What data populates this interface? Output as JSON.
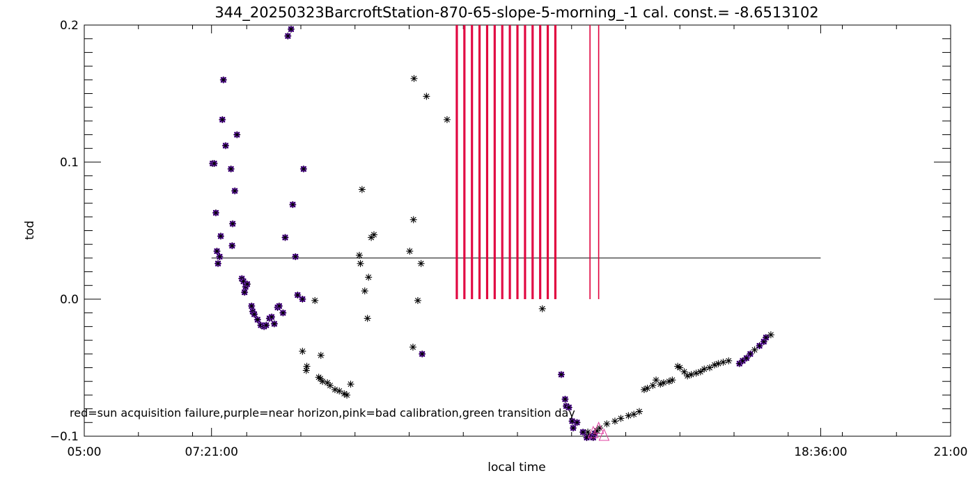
{
  "chart_data": {
    "type": "scatter",
    "title": "344_20250323BarcroftStation-870-65-slope-5-morning_-1 cal. const.= -8.6513102",
    "xlabel": "local time",
    "ylabel": "tod",
    "xlim_hours": [
      5.0,
      21.0
    ],
    "ylim": [
      -0.1,
      0.2
    ],
    "x_ticks": [
      {
        "value": 5.0,
        "label": "05:00"
      },
      {
        "value": 7.35,
        "label": "07:21:00"
      },
      {
        "value": 18.6,
        "label": "18:36:00"
      },
      {
        "value": 21.0,
        "label": "21:00"
      }
    ],
    "y_ticks": [
      {
        "value": -0.1,
        "label": "−0.1"
      },
      {
        "value": 0.0,
        "label": "0.0"
      },
      {
        "value": 0.1,
        "label": "0.1"
      },
      {
        "value": 0.2,
        "label": "0.2"
      }
    ],
    "annotation": "red=sun acquisition failure,purple=near horizon,pink=bad calibration,green transition day",
    "reference_line": {
      "y": 0.03,
      "x_start": 7.35,
      "x_end": 18.6,
      "color": "#000000"
    },
    "colors": {
      "black": "#000000",
      "purple": "#8a2be2",
      "red": "#e0003c",
      "pink": "#e040a0"
    },
    "near_horizon_points": [
      [
        7.37,
        0.099
      ],
      [
        7.4,
        0.099
      ],
      [
        7.43,
        0.063
      ],
      [
        7.45,
        0.035
      ],
      [
        7.47,
        0.026
      ],
      [
        7.5,
        0.031
      ],
      [
        7.52,
        0.046
      ],
      [
        7.55,
        0.131
      ],
      [
        7.57,
        0.16
      ],
      [
        7.61,
        0.112
      ],
      [
        7.71,
        0.095
      ],
      [
        7.74,
        0.055
      ],
      [
        7.73,
        0.039
      ],
      [
        7.78,
        0.079
      ],
      [
        7.82,
        0.12
      ],
      [
        7.91,
        0.015
      ],
      [
        7.94,
        0.013
      ],
      [
        7.96,
        0.005
      ],
      [
        7.98,
        0.009
      ],
      [
        8.01,
        0.011
      ],
      [
        8.09,
        -0.005
      ],
      [
        8.11,
        -0.009
      ],
      [
        8.14,
        -0.011
      ],
      [
        8.2,
        -0.015
      ],
      [
        8.26,
        -0.019
      ],
      [
        8.32,
        -0.02
      ],
      [
        8.36,
        -0.019
      ],
      [
        8.42,
        -0.014
      ],
      [
        8.46,
        -0.013
      ],
      [
        8.51,
        -0.018
      ],
      [
        8.57,
        -0.006
      ],
      [
        8.6,
        -0.005
      ],
      [
        8.67,
        -0.01
      ],
      [
        8.71,
        0.045
      ],
      [
        8.76,
        0.192
      ],
      [
        8.82,
        0.197
      ],
      [
        8.85,
        0.069
      ],
      [
        8.9,
        0.031
      ],
      [
        8.94,
        0.003
      ],
      [
        9.03,
        0.0
      ],
      [
        9.05,
        0.095
      ],
      [
        11.24,
        -0.04
      ],
      [
        13.81,
        -0.055
      ],
      [
        13.88,
        -0.073
      ],
      [
        13.9,
        -0.078
      ],
      [
        13.95,
        -0.079
      ],
      [
        14.01,
        -0.089
      ],
      [
        14.03,
        -0.094
      ],
      [
        14.1,
        -0.09
      ],
      [
        14.21,
        -0.097
      ],
      [
        14.28,
        -0.101
      ],
      [
        14.35,
        -0.1
      ],
      [
        14.4,
        -0.101
      ],
      [
        14.43,
        -0.098
      ],
      [
        17.1,
        -0.047
      ],
      [
        17.16,
        -0.045
      ],
      [
        17.23,
        -0.043
      ],
      [
        17.3,
        -0.04
      ],
      [
        17.47,
        -0.034
      ],
      [
        17.55,
        -0.031
      ],
      [
        17.59,
        -0.028
      ]
    ],
    "black_points": [
      [
        9.26,
        -0.001
      ],
      [
        9.03,
        -0.038
      ],
      [
        9.11,
        -0.049
      ],
      [
        9.1,
        -0.052
      ],
      [
        9.33,
        -0.057
      ],
      [
        9.36,
        -0.058
      ],
      [
        9.4,
        -0.06
      ],
      [
        9.49,
        -0.061
      ],
      [
        9.54,
        -0.063
      ],
      [
        9.63,
        -0.066
      ],
      [
        9.71,
        -0.067
      ],
      [
        9.8,
        -0.069
      ],
      [
        9.85,
        -0.07
      ],
      [
        9.92,
        -0.062
      ],
      [
        9.37,
        -0.041
      ],
      [
        10.13,
        0.08
      ],
      [
        10.08,
        0.032
      ],
      [
        10.1,
        0.026
      ],
      [
        10.18,
        0.006
      ],
      [
        10.25,
        0.016
      ],
      [
        10.23,
        -0.014
      ],
      [
        10.3,
        0.045
      ],
      [
        10.35,
        0.047
      ],
      [
        11.01,
        0.035
      ],
      [
        11.08,
        0.058
      ],
      [
        11.09,
        0.161
      ],
      [
        11.07,
        -0.035
      ],
      [
        11.16,
        -0.001
      ],
      [
        11.22,
        0.026
      ],
      [
        11.32,
        0.148
      ],
      [
        11.7,
        0.131
      ],
      [
        13.46,
        -0.007
      ],
      [
        14.3,
        -0.097
      ],
      [
        14.47,
        -0.096
      ],
      [
        14.52,
        -0.094
      ],
      [
        14.65,
        -0.091
      ],
      [
        14.8,
        -0.089
      ],
      [
        14.91,
        -0.087
      ],
      [
        15.05,
        -0.085
      ],
      [
        15.15,
        -0.084
      ],
      [
        15.25,
        -0.082
      ],
      [
        15.34,
        -0.066
      ],
      [
        15.4,
        -0.065
      ],
      [
        15.5,
        -0.063
      ],
      [
        15.56,
        -0.059
      ],
      [
        15.64,
        -0.062
      ],
      [
        15.7,
        -0.061
      ],
      [
        15.8,
        -0.06
      ],
      [
        15.86,
        -0.059
      ],
      [
        15.96,
        -0.049
      ],
      [
        16.0,
        -0.05
      ],
      [
        16.08,
        -0.053
      ],
      [
        16.14,
        -0.056
      ],
      [
        16.21,
        -0.055
      ],
      [
        16.3,
        -0.054
      ],
      [
        16.38,
        -0.053
      ],
      [
        16.45,
        -0.051
      ],
      [
        16.55,
        -0.05
      ],
      [
        16.64,
        -0.048
      ],
      [
        16.71,
        -0.047
      ],
      [
        16.8,
        -0.046
      ],
      [
        16.9,
        -0.045
      ],
      [
        17.38,
        -0.037
      ],
      [
        17.68,
        -0.026
      ]
    ],
    "sun_acquisition_failures_x": [
      11.87,
      11.89,
      12.01,
      12.03,
      12.15,
      12.17,
      12.29,
      12.31,
      12.43,
      12.45,
      12.57,
      12.59,
      12.71,
      12.73,
      12.85,
      12.87,
      12.99,
      13.01,
      13.13,
      13.15,
      13.27,
      13.29,
      13.41,
      13.43,
      13.55,
      13.57,
      13.69,
      13.71,
      14.34,
      14.5
    ],
    "sun_acquisition_failure_range": [
      0.0,
      0.2
    ],
    "bad_calibration_triangles": [
      [
        14.4,
        -0.097
      ],
      [
        14.5,
        -0.094
      ],
      [
        14.6,
        -0.099
      ]
    ]
  }
}
